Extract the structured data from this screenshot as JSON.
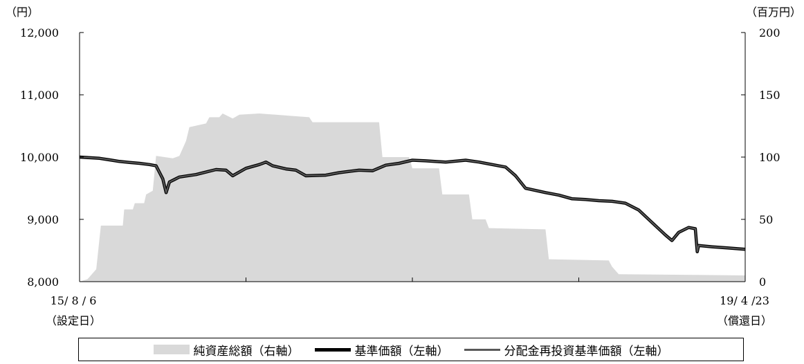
{
  "chart_data": {
    "type": "line",
    "y_unit_left": "（円）",
    "y_unit_right": "（百万円）",
    "ylim_left": [
      8000,
      12000
    ],
    "ylim_right": [
      0,
      200
    ],
    "left_ticks": [
      "8,000",
      "9,000",
      "10,000",
      "11,000",
      "12,000"
    ],
    "right_ticks": [
      "0",
      "50",
      "100",
      "150",
      "200"
    ],
    "x_start_label": "15/ 8 / 6",
    "x_start_sub": "（設定日）",
    "x_end_label": "19/ 4 /23",
    "x_end_sub": "（償還日）",
    "x_range": [
      0,
      1
    ],
    "grid": false,
    "legend_position": "bottom",
    "series": [
      {
        "name": "純資産総額（右軸）",
        "kind": "area",
        "axis": "right",
        "color": "#d9d9d9",
        "points": [
          [
            0.0,
            0
          ],
          [
            0.012,
            2
          ],
          [
            0.025,
            10
          ],
          [
            0.032,
            45
          ],
          [
            0.065,
            45
          ],
          [
            0.067,
            58
          ],
          [
            0.08,
            58
          ],
          [
            0.083,
            63
          ],
          [
            0.097,
            63
          ],
          [
            0.1,
            70
          ],
          [
            0.11,
            73
          ],
          [
            0.115,
            101
          ],
          [
            0.14,
            99
          ],
          [
            0.15,
            101
          ],
          [
            0.16,
            113
          ],
          [
            0.165,
            124
          ],
          [
            0.19,
            127
          ],
          [
            0.195,
            132
          ],
          [
            0.21,
            132
          ],
          [
            0.215,
            135
          ],
          [
            0.23,
            131
          ],
          [
            0.24,
            134
          ],
          [
            0.27,
            135
          ],
          [
            0.295,
            134
          ],
          [
            0.32,
            133
          ],
          [
            0.345,
            132
          ],
          [
            0.35,
            128
          ],
          [
            0.45,
            128
          ],
          [
            0.455,
            100
          ],
          [
            0.495,
            100
          ],
          [
            0.5,
            91
          ],
          [
            0.54,
            91
          ],
          [
            0.545,
            70
          ],
          [
            0.585,
            70
          ],
          [
            0.59,
            50
          ],
          [
            0.61,
            50
          ],
          [
            0.615,
            43
          ],
          [
            0.7,
            42
          ],
          [
            0.705,
            18
          ],
          [
            0.795,
            17
          ],
          [
            0.8,
            12
          ],
          [
            0.81,
            6
          ],
          [
            1.0,
            5
          ]
        ]
      },
      {
        "name": "基準価額（左軸）",
        "kind": "line",
        "axis": "left",
        "color": "#000000",
        "points": [
          [
            0.0,
            10000
          ],
          [
            0.015,
            9990
          ],
          [
            0.03,
            9980
          ],
          [
            0.045,
            9955
          ],
          [
            0.06,
            9930
          ],
          [
            0.075,
            9915
          ],
          [
            0.09,
            9900
          ],
          [
            0.105,
            9880
          ],
          [
            0.115,
            9860
          ],
          [
            0.125,
            9650
          ],
          [
            0.13,
            9430
          ],
          [
            0.135,
            9600
          ],
          [
            0.15,
            9680
          ],
          [
            0.175,
            9720
          ],
          [
            0.19,
            9760
          ],
          [
            0.205,
            9800
          ],
          [
            0.22,
            9790
          ],
          [
            0.23,
            9700
          ],
          [
            0.25,
            9820
          ],
          [
            0.27,
            9880
          ],
          [
            0.28,
            9920
          ],
          [
            0.29,
            9860
          ],
          [
            0.31,
            9810
          ],
          [
            0.325,
            9790
          ],
          [
            0.34,
            9700
          ],
          [
            0.37,
            9710
          ],
          [
            0.39,
            9750
          ],
          [
            0.42,
            9790
          ],
          [
            0.44,
            9780
          ],
          [
            0.46,
            9870
          ],
          [
            0.48,
            9900
          ],
          [
            0.5,
            9950
          ],
          [
            0.52,
            9940
          ],
          [
            0.55,
            9920
          ],
          [
            0.58,
            9950
          ],
          [
            0.6,
            9920
          ],
          [
            0.62,
            9880
          ],
          [
            0.64,
            9840
          ],
          [
            0.655,
            9700
          ],
          [
            0.67,
            9500
          ],
          [
            0.7,
            9430
          ],
          [
            0.72,
            9390
          ],
          [
            0.74,
            9330
          ],
          [
            0.76,
            9320
          ],
          [
            0.78,
            9300
          ],
          [
            0.8,
            9290
          ],
          [
            0.82,
            9260
          ],
          [
            0.84,
            9150
          ],
          [
            0.86,
            8950
          ],
          [
            0.88,
            8750
          ],
          [
            0.89,
            8660
          ],
          [
            0.9,
            8790
          ],
          [
            0.915,
            8870
          ],
          [
            0.925,
            8850
          ],
          [
            0.928,
            8480
          ],
          [
            0.93,
            8580
          ],
          [
            0.95,
            8560
          ],
          [
            0.975,
            8540
          ],
          [
            1.0,
            8520
          ]
        ]
      },
      {
        "name": "分配金再投資基準価額（左軸）",
        "kind": "line",
        "axis": "left",
        "color": "#595959",
        "points": [
          [
            0.0,
            10000
          ],
          [
            0.015,
            9990
          ],
          [
            0.03,
            9980
          ],
          [
            0.045,
            9955
          ],
          [
            0.06,
            9930
          ],
          [
            0.075,
            9915
          ],
          [
            0.09,
            9900
          ],
          [
            0.105,
            9880
          ],
          [
            0.115,
            9860
          ],
          [
            0.125,
            9650
          ],
          [
            0.13,
            9430
          ],
          [
            0.135,
            9600
          ],
          [
            0.15,
            9680
          ],
          [
            0.175,
            9720
          ],
          [
            0.19,
            9760
          ],
          [
            0.205,
            9800
          ],
          [
            0.22,
            9790
          ],
          [
            0.23,
            9700
          ],
          [
            0.25,
            9820
          ],
          [
            0.27,
            9880
          ],
          [
            0.28,
            9920
          ],
          [
            0.29,
            9860
          ],
          [
            0.31,
            9810
          ],
          [
            0.325,
            9790
          ],
          [
            0.34,
            9700
          ],
          [
            0.37,
            9710
          ],
          [
            0.39,
            9750
          ],
          [
            0.42,
            9790
          ],
          [
            0.44,
            9780
          ],
          [
            0.46,
            9870
          ],
          [
            0.48,
            9900
          ],
          [
            0.5,
            9950
          ],
          [
            0.52,
            9940
          ],
          [
            0.55,
            9920
          ],
          [
            0.58,
            9950
          ],
          [
            0.6,
            9920
          ],
          [
            0.62,
            9880
          ],
          [
            0.64,
            9840
          ],
          [
            0.655,
            9700
          ],
          [
            0.67,
            9500
          ],
          [
            0.7,
            9430
          ],
          [
            0.72,
            9390
          ],
          [
            0.74,
            9330
          ],
          [
            0.76,
            9320
          ],
          [
            0.78,
            9300
          ],
          [
            0.8,
            9290
          ],
          [
            0.82,
            9260
          ],
          [
            0.84,
            9150
          ],
          [
            0.86,
            8950
          ],
          [
            0.88,
            8750
          ],
          [
            0.89,
            8660
          ],
          [
            0.9,
            8790
          ],
          [
            0.915,
            8870
          ],
          [
            0.925,
            8850
          ],
          [
            0.928,
            8480
          ],
          [
            0.93,
            8580
          ],
          [
            0.95,
            8560
          ],
          [
            0.975,
            8540
          ],
          [
            1.0,
            8520
          ]
        ]
      }
    ]
  }
}
